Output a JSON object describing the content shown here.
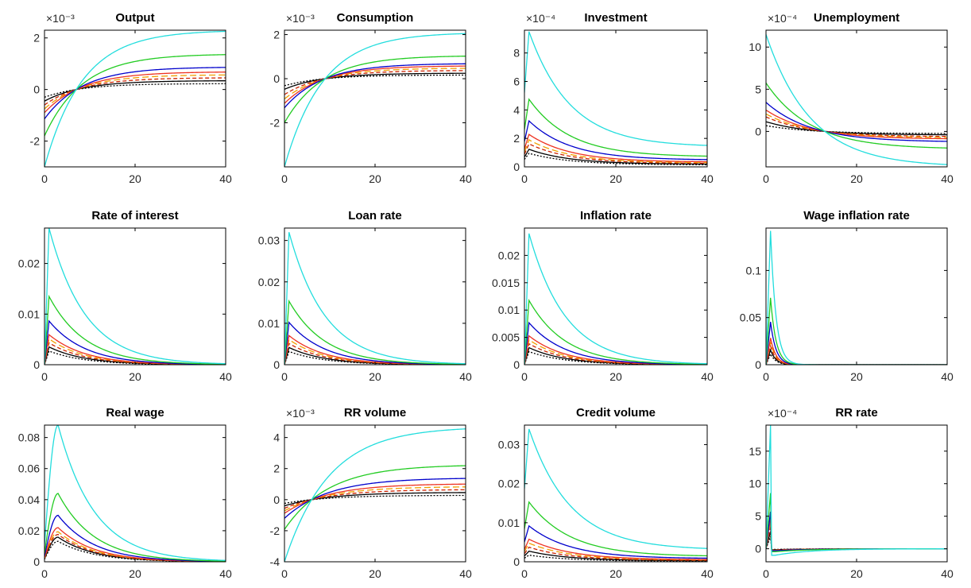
{
  "chart_data": {
    "type": "line",
    "x_range": [
      0,
      40
    ],
    "x_ticks": [
      0,
      20,
      40
    ],
    "series_styles": [
      {
        "color": "#000000",
        "dash": "2,2"
      },
      {
        "color": "#000000",
        "dash": ""
      },
      {
        "color": "#cc2200",
        "dash": "5,3"
      },
      {
        "color": "#f0a000",
        "dash": "8,4"
      },
      {
        "color": "#ee3322",
        "dash": ""
      },
      {
        "color": "#0000cc",
        "dash": ""
      },
      {
        "color": "#22cc22",
        "dash": ""
      },
      {
        "color": "#22dddd",
        "dash": ""
      }
    ],
    "panels": [
      {
        "title": "Output",
        "exponent": "×10⁻³",
        "ylim": [
          -3,
          2.3
        ],
        "yticks": [
          -2,
          0,
          2
        ],
        "shape": "cross",
        "multipliers": [
          0.1,
          0.15,
          0.2,
          0.25,
          0.3,
          0.38,
          0.6,
          1.0
        ],
        "params": {
          "start": -3.0,
          "end": 2.3,
          "cross": 7,
          "tau": 9
        }
      },
      {
        "title": "Consumption",
        "exponent": "×10⁻³",
        "ylim": [
          -4,
          2.2
        ],
        "yticks": [
          -2,
          0,
          2
        ],
        "shape": "cross",
        "multipliers": [
          0.08,
          0.12,
          0.18,
          0.23,
          0.28,
          0.33,
          0.5,
          1.0
        ],
        "params": {
          "start": -4.0,
          "end": 2.1,
          "cross": 9,
          "tau": 9
        }
      },
      {
        "title": "Investment",
        "exponent": "×10⁻⁴",
        "ylim": [
          0,
          9.6
        ],
        "yticks": [
          0,
          2,
          4,
          6,
          8
        ],
        "shape": "decay_offset",
        "multipliers": [
          0.1,
          0.13,
          0.17,
          0.2,
          0.24,
          0.34,
          0.5,
          1.0
        ],
        "params": {
          "peak": 9.5,
          "peak_at": 1,
          "end": 1.4,
          "tau": 9
        }
      },
      {
        "title": "Unemployment",
        "exponent": "×10⁻⁴",
        "ylim": [
          -4.2,
          12
        ],
        "yticks": [
          0,
          5,
          10
        ],
        "shape": "cross",
        "multipliers": [
          0.06,
          0.1,
          0.15,
          0.18,
          0.22,
          0.3,
          0.5,
          1.0
        ],
        "params": {
          "start": 11.5,
          "end": -4.2,
          "cross": 13,
          "tau": 9
        }
      },
      {
        "title": "Rate of interest",
        "exponent": "",
        "ylim": [
          0,
          0.027
        ],
        "yticks": [
          0,
          0.01,
          0.02
        ],
        "shape": "decay",
        "multipliers": [
          0.1,
          0.13,
          0.16,
          0.19,
          0.22,
          0.32,
          0.5,
          1.0
        ],
        "params": {
          "peak": 0.027,
          "peak_at": 1,
          "tau": 8
        }
      },
      {
        "title": "Loan rate",
        "exponent": "",
        "ylim": [
          0,
          0.033
        ],
        "yticks": [
          0,
          0.01,
          0.02,
          0.03
        ],
        "shape": "decay",
        "multipliers": [
          0.1,
          0.13,
          0.16,
          0.19,
          0.22,
          0.32,
          0.48,
          1.0
        ],
        "params": {
          "peak": 0.032,
          "peak_at": 1,
          "tau": 8
        }
      },
      {
        "title": "Inflation rate",
        "exponent": "",
        "ylim": [
          0,
          0.025
        ],
        "yticks": [
          0,
          0.005,
          0.01,
          0.015,
          0.02
        ],
        "shape": "decay",
        "multipliers": [
          0.1,
          0.13,
          0.16,
          0.19,
          0.22,
          0.32,
          0.49,
          1.0
        ],
        "params": {
          "peak": 0.024,
          "peak_at": 1,
          "tau": 8
        }
      },
      {
        "title": "Wage inflation rate",
        "exponent": "",
        "ylim": [
          0,
          0.145
        ],
        "yticks": [
          0,
          0.05,
          0.1
        ],
        "shape": "spike",
        "multipliers": [
          0.08,
          0.11,
          0.14,
          0.17,
          0.2,
          0.32,
          0.5,
          1.0
        ],
        "params": {
          "peak": 0.142,
          "peak_at": 1,
          "tau": 1.2
        }
      },
      {
        "title": "Real wage",
        "exponent": "",
        "ylim": [
          0,
          0.088
        ],
        "yticks": [
          0,
          0.02,
          0.04,
          0.06,
          0.08
        ],
        "shape": "hump",
        "multipliers": [
          0.15,
          0.18,
          0.2,
          0.22,
          0.25,
          0.34,
          0.5,
          1.0
        ],
        "params": {
          "peak": 0.088,
          "peak_at": 3,
          "tau": 8
        }
      },
      {
        "title": "RR volume",
        "exponent": "×10⁻³",
        "ylim": [
          -4,
          4.8
        ],
        "yticks": [
          -4,
          -2,
          0,
          2,
          4
        ],
        "shape": "cross",
        "multipliers": [
          0.06,
          0.1,
          0.14,
          0.18,
          0.22,
          0.3,
          0.48,
          1.0
        ],
        "params": {
          "start": -4.0,
          "end": 4.7,
          "cross": 6,
          "tau": 8
        }
      },
      {
        "title": "Credit volume",
        "exponent": "",
        "ylim": [
          0,
          0.035
        ],
        "yticks": [
          0,
          0.01,
          0.02,
          0.03
        ],
        "shape": "decay_offset",
        "multipliers": [
          0.05,
          0.08,
          0.11,
          0.14,
          0.17,
          0.27,
          0.45,
          1.0
        ],
        "params": {
          "peak": 0.034,
          "peak_at": 1,
          "end": 0.003,
          "tau": 9
        }
      },
      {
        "title": "RR rate",
        "exponent": "×10⁻⁴",
        "ylim": [
          -2,
          19
        ],
        "yticks": [
          0,
          5,
          10,
          15
        ],
        "shape": "spike_under",
        "multipliers": [
          0.1,
          0.14,
          0.18,
          0.22,
          0.26,
          0.3,
          0.45,
          1.0
        ],
        "params": {
          "peak": 19,
          "peak_at": 1,
          "tau": 0.5,
          "under": -1.0
        }
      }
    ]
  }
}
